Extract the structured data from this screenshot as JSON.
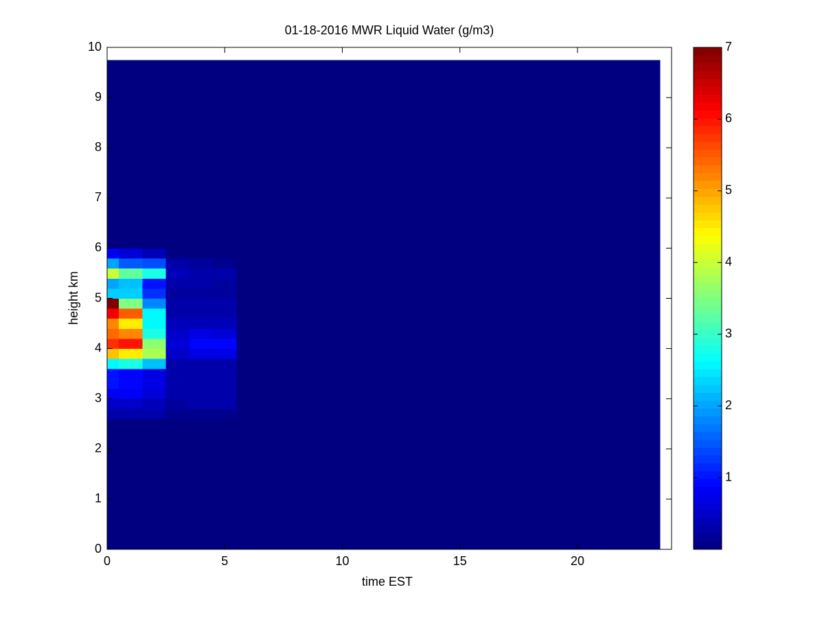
{
  "chart_data": {
    "type": "heatmap",
    "title": "01-18-2016 MWR Liquid Water (g/m3)",
    "x_label": "time EST",
    "y_label": "height km",
    "x_edges": [
      0,
      0.5,
      1.5,
      2.5,
      3.5,
      4.5,
      5.5,
      6.5,
      7.5,
      8.5,
      9.5,
      10.5,
      11.5,
      12.5,
      13.5,
      14.5,
      15.5,
      16.5,
      17.5,
      18.5,
      19.5,
      20.5,
      21.5,
      22.5,
      23.5
    ],
    "y_edges": [
      0,
      2.6,
      2.8,
      3.0,
      3.2,
      3.4,
      3.6,
      3.8,
      4.0,
      4.2,
      4.4,
      4.6,
      4.8,
      5.0,
      5.2,
      5.4,
      5.6,
      5.8,
      6.0,
      9.75
    ],
    "values": [
      [
        0,
        0,
        0,
        0,
        0,
        0,
        0,
        0,
        0,
        0,
        0,
        0,
        0,
        0,
        0,
        0,
        0,
        0,
        0,
        0,
        0,
        0,
        0,
        0
      ],
      [
        0.3,
        0.3,
        0.3,
        0.1,
        0.1,
        0.1,
        0,
        0,
        0,
        0,
        0,
        0,
        0,
        0,
        0,
        0,
        0,
        0,
        0,
        0,
        0,
        0,
        0,
        0
      ],
      [
        0.5,
        0.5,
        0.4,
        0.2,
        0.3,
        0.3,
        0,
        0,
        0,
        0,
        0,
        0,
        0,
        0,
        0,
        0,
        0,
        0,
        0,
        0,
        0,
        0,
        0,
        0
      ],
      [
        0.8,
        0.8,
        0.6,
        0.3,
        0.3,
        0.3,
        0,
        0,
        0,
        0,
        0,
        0,
        0,
        0,
        0,
        0,
        0,
        0,
        0,
        0,
        0,
        0,
        0,
        0
      ],
      [
        1.0,
        0.9,
        0.7,
        0.3,
        0.3,
        0.3,
        0,
        0,
        0,
        0,
        0,
        0,
        0,
        0,
        0,
        0,
        0,
        0,
        0,
        0,
        0,
        0,
        0,
        0
      ],
      [
        1.0,
        0.9,
        0.7,
        0.3,
        0.3,
        0.3,
        0,
        0,
        0,
        0,
        0,
        0,
        0,
        0,
        0,
        0,
        0,
        0,
        0,
        0,
        0,
        0,
        0,
        0
      ],
      [
        2.6,
        2.8,
        2.2,
        0.3,
        0.3,
        0.3,
        0,
        0,
        0,
        0,
        0,
        0,
        0,
        0,
        0,
        0,
        0,
        0,
        0,
        0,
        0,
        0,
        0,
        0
      ],
      [
        4.8,
        4.5,
        3.8,
        0.5,
        0.7,
        0.7,
        0,
        0,
        0,
        0,
        0,
        0,
        0,
        0,
        0,
        0,
        0,
        0,
        0,
        0,
        0,
        0,
        0,
        0
      ],
      [
        5.8,
        6.0,
        3.6,
        0.6,
        0.9,
        0.9,
        0,
        0,
        0,
        0,
        0,
        0,
        0,
        0,
        0,
        0,
        0,
        0,
        0,
        0,
        0,
        0,
        0,
        0
      ],
      [
        5.4,
        5.2,
        2.8,
        0.5,
        0.7,
        0.6,
        0,
        0,
        0,
        0,
        0,
        0,
        0,
        0,
        0,
        0,
        0,
        0,
        0,
        0,
        0,
        0,
        0,
        0
      ],
      [
        5.2,
        4.5,
        2.6,
        0.4,
        0.4,
        0.4,
        0,
        0,
        0,
        0,
        0,
        0,
        0,
        0,
        0,
        0,
        0,
        0,
        0,
        0,
        0,
        0,
        0,
        0
      ],
      [
        6.2,
        5.5,
        2.6,
        0.3,
        0.3,
        0.3,
        0,
        0,
        0,
        0,
        0,
        0,
        0,
        0,
        0,
        0,
        0,
        0,
        0,
        0,
        0,
        0,
        0,
        0
      ],
      [
        7.0,
        3.5,
        1.8,
        0.3,
        0.3,
        0.3,
        0,
        0,
        0,
        0,
        0,
        0,
        0,
        0,
        0,
        0,
        0,
        0,
        0,
        0,
        0,
        0,
        0,
        0
      ],
      [
        2.3,
        2.3,
        1.2,
        0.2,
        0.2,
        0.2,
        0,
        0,
        0,
        0,
        0,
        0,
        0,
        0,
        0,
        0,
        0,
        0,
        0,
        0,
        0,
        0,
        0,
        0
      ],
      [
        2.0,
        2.2,
        1.0,
        0.3,
        0.3,
        0.2,
        0,
        0,
        0,
        0,
        0,
        0,
        0,
        0,
        0,
        0,
        0,
        0,
        0,
        0,
        0,
        0,
        0,
        0
      ],
      [
        4.0,
        3.3,
        2.8,
        0.4,
        0.3,
        0.3,
        0,
        0,
        0,
        0,
        0,
        0,
        0,
        0,
        0,
        0,
        0,
        0,
        0,
        0,
        0,
        0,
        0,
        0
      ],
      [
        2.0,
        1.5,
        1.4,
        0.3,
        0.2,
        0.1,
        0,
        0,
        0,
        0,
        0,
        0,
        0,
        0,
        0,
        0,
        0,
        0,
        0,
        0,
        0,
        0,
        0,
        0
      ],
      [
        0.8,
        0.6,
        0.4,
        0,
        0,
        0,
        0,
        0,
        0,
        0,
        0,
        0,
        0,
        0,
        0,
        0,
        0,
        0,
        0,
        0,
        0,
        0,
        0,
        0
      ],
      [
        0,
        0,
        0,
        0,
        0,
        0,
        0,
        0,
        0,
        0,
        0,
        0,
        0,
        0,
        0,
        0,
        0,
        0,
        0,
        0,
        0,
        0,
        0,
        0
      ]
    ],
    "xlim": [
      0,
      24
    ],
    "xticks": [
      0,
      5,
      10,
      15,
      20
    ],
    "ylim": [
      0,
      10
    ],
    "yticks": [
      0,
      1,
      2,
      3,
      4,
      5,
      6,
      7,
      8,
      9,
      10
    ],
    "clim": [
      0,
      7
    ],
    "cticks": [
      1,
      2,
      3,
      4,
      5,
      6,
      7
    ],
    "colormap": "jet"
  }
}
